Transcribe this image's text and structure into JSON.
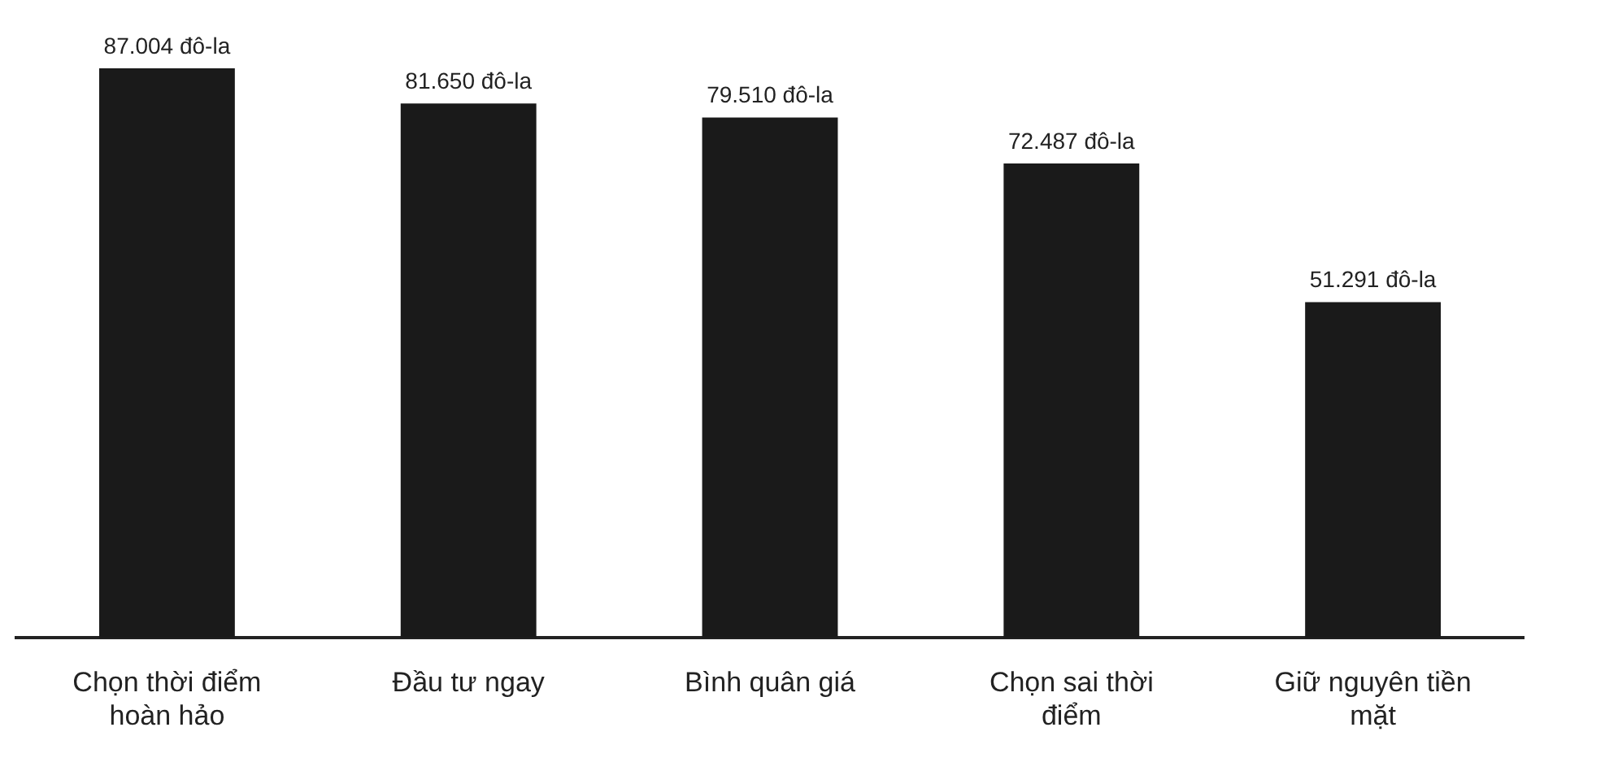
{
  "chart_data": {
    "type": "bar",
    "categories": [
      "Chọn thời điểm hoàn hảo",
      "Đầu tư ngay",
      "Bình quân giá",
      "Chọn sai thời điểm",
      "Giữ nguyên tiền mặt"
    ],
    "values": [
      87004,
      81650,
      79510,
      72487,
      51291
    ],
    "value_labels": [
      "87.004 đô-la",
      "81.650 đô-la",
      "79.510 đô-la",
      "72.487 đô-la",
      "51.291 đô-la"
    ],
    "color": "#1a1a1a",
    "grid": false,
    "legend": false
  }
}
